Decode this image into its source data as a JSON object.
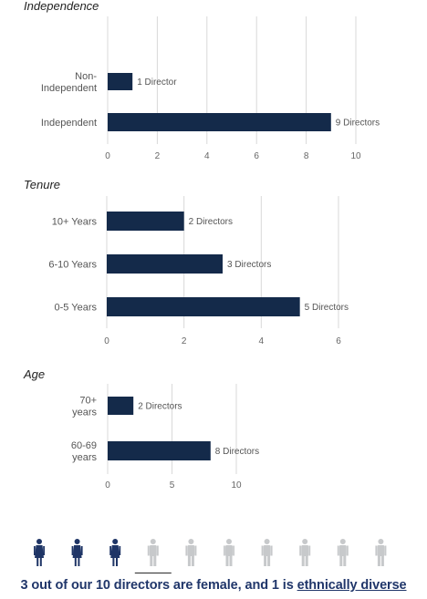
{
  "chart_data": [
    {
      "type": "bar",
      "orientation": "horizontal",
      "title": "Independence",
      "categories": [
        "Non-\nIndependent",
        "Independent"
      ],
      "values": [
        1,
        9
      ],
      "data_labels": [
        "1 Director",
        "9 Directors"
      ],
      "xlim": [
        0,
        10
      ],
      "xticks": [
        0,
        2,
        4,
        6,
        8,
        10
      ],
      "grid": true
    },
    {
      "type": "bar",
      "orientation": "horizontal",
      "title": "Tenure",
      "categories": [
        "10+ Years",
        "6-10 Years",
        "0-5 Years"
      ],
      "values": [
        2,
        3,
        5
      ],
      "data_labels": [
        "2 Directors",
        "3 Directors",
        "5 Directors"
      ],
      "xlim": [
        0,
        6
      ],
      "xticks": [
        0,
        2,
        4,
        6
      ],
      "grid": true
    },
    {
      "type": "bar",
      "orientation": "horizontal",
      "title": "Age",
      "categories": [
        "70+\nyears",
        "60-69\nyears"
      ],
      "values": [
        2,
        8
      ],
      "data_labels": [
        "2 Directors",
        "8 Directors"
      ],
      "xlim": [
        0,
        10
      ],
      "xticks": [
        0,
        5,
        10
      ],
      "grid": true
    }
  ],
  "pictograph": {
    "total": 10,
    "female": 3,
    "ethnically_diverse": 1,
    "female_color": "#1f3566",
    "other_color": "#c7c9cb",
    "icon": "person-icon"
  },
  "footer": {
    "prefix": "3 out of our 10 directors are female, and 1 is ",
    "emphasis": "ethnically diverse"
  },
  "colors": {
    "bar": "#142a4a",
    "grid": "#d9d9d9"
  }
}
